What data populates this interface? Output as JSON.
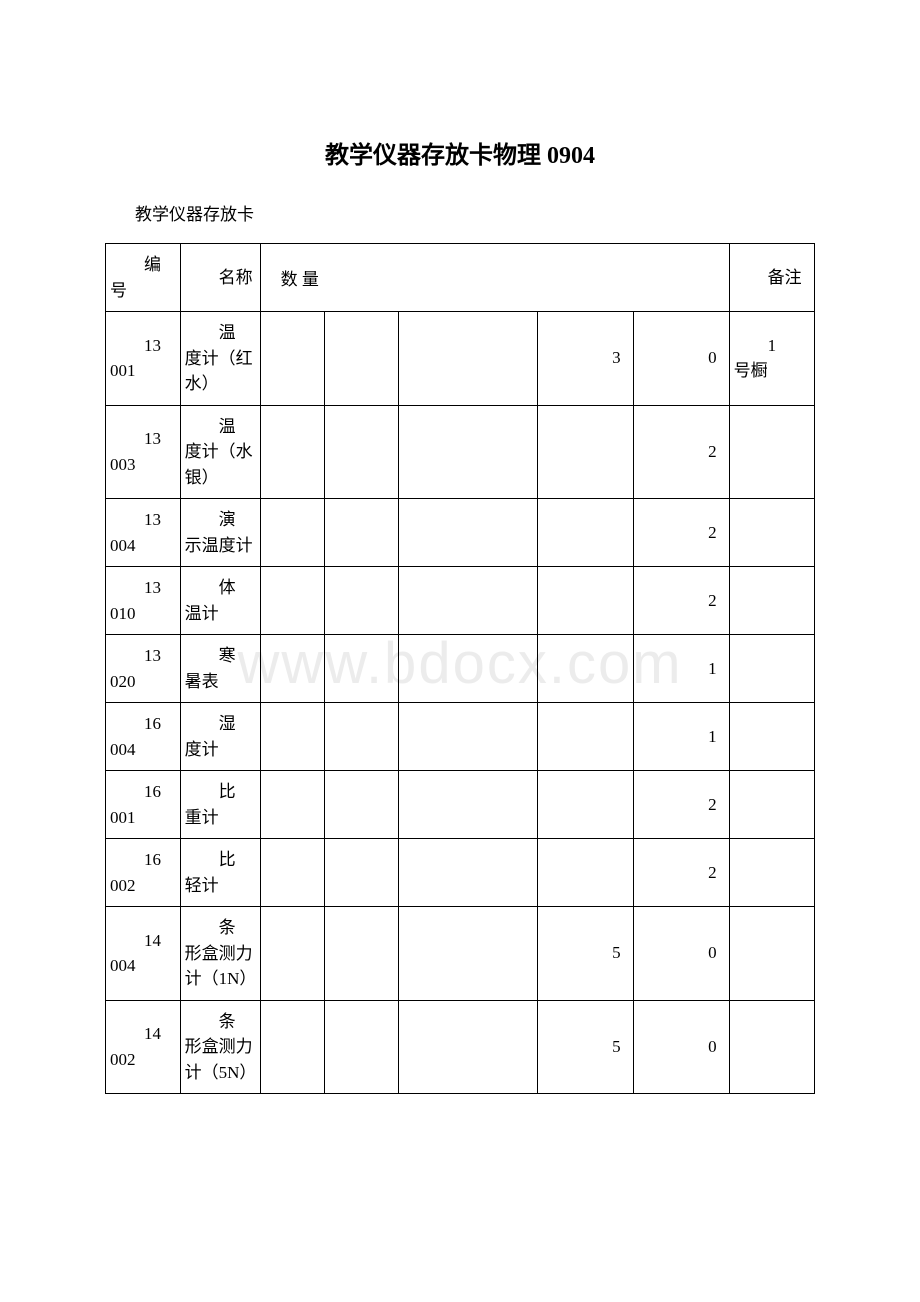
{
  "title": "教学仪器存放卡物理 0904",
  "subtitle": "教学仪器存放卡",
  "watermark": "www.bdocx.com",
  "headers": {
    "id": "编号",
    "name": "名称",
    "qty": "数 量",
    "note": "备注"
  },
  "rows": [
    {
      "id_top": "13",
      "id_bot": "001",
      "name_top": "温",
      "name_rest": "度计（红水）",
      "q1": "",
      "q2": "",
      "q3": "",
      "q4": "3",
      "q5": "0",
      "note_top": "1",
      "note_rest": "号橱"
    },
    {
      "id_top": "13",
      "id_bot": "003",
      "name_top": "温",
      "name_rest": "度计（水银）",
      "q1": "",
      "q2": "",
      "q3": "",
      "q4": "",
      "q5": "2",
      "note_top": "",
      "note_rest": ""
    },
    {
      "id_top": "13",
      "id_bot": "004",
      "name_top": "演",
      "name_rest": "示温度计",
      "q1": "",
      "q2": "",
      "q3": "",
      "q4": "",
      "q5": "2",
      "note_top": "",
      "note_rest": ""
    },
    {
      "id_top": "13",
      "id_bot": "010",
      "name_top": "体",
      "name_rest": "温计",
      "q1": "",
      "q2": "",
      "q3": "",
      "q4": "",
      "q5": "2",
      "note_top": "",
      "note_rest": ""
    },
    {
      "id_top": "13",
      "id_bot": "020",
      "name_top": "寒",
      "name_rest": "暑表",
      "q1": "",
      "q2": "",
      "q3": "",
      "q4": "",
      "q5": "1",
      "note_top": "",
      "note_rest": ""
    },
    {
      "id_top": "16",
      "id_bot": "004",
      "name_top": "湿",
      "name_rest": "度计",
      "q1": "",
      "q2": "",
      "q3": "",
      "q4": "",
      "q5": "1",
      "note_top": "",
      "note_rest": ""
    },
    {
      "id_top": "16",
      "id_bot": "001",
      "name_top": "比",
      "name_rest": "重计",
      "q1": "",
      "q2": "",
      "q3": "",
      "q4": "",
      "q5": "2",
      "note_top": "",
      "note_rest": ""
    },
    {
      "id_top": "16",
      "id_bot": "002",
      "name_top": "比",
      "name_rest": "轻计",
      "q1": "",
      "q2": "",
      "q3": "",
      "q4": "",
      "q5": "2",
      "note_top": "",
      "note_rest": ""
    },
    {
      "id_top": "14",
      "id_bot": "004",
      "name_top": "条",
      "name_rest": "形盒测力计（1N）",
      "q1": "",
      "q2": "",
      "q3": "",
      "q4": "5",
      "q5": "0",
      "note_top": "",
      "note_rest": ""
    },
    {
      "id_top": "14",
      "id_bot": "002",
      "name_top": "条",
      "name_rest": "形盒测力计（5N）",
      "q1": "",
      "q2": "",
      "q3": "",
      "q4": "5",
      "q5": "0",
      "note_top": "",
      "note_rest": ""
    }
  ]
}
